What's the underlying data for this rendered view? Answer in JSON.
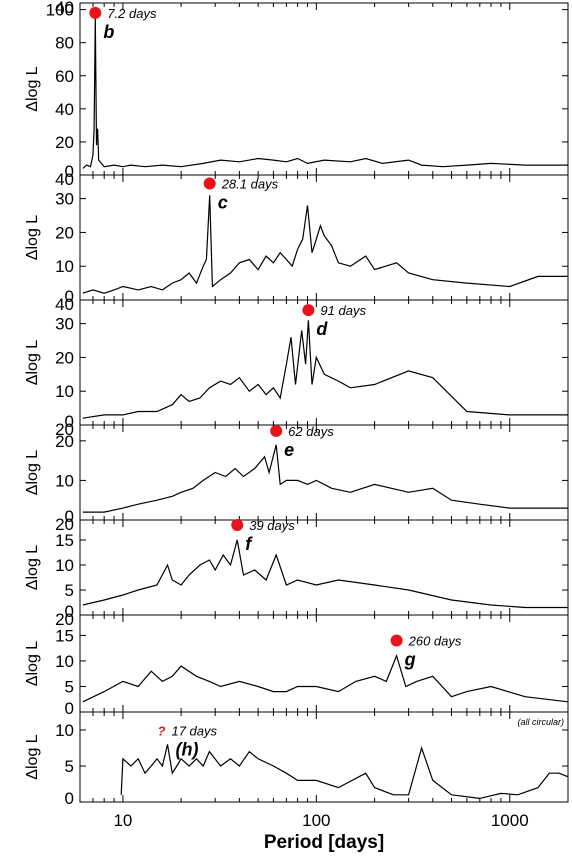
{
  "chart_data": {
    "type": "line",
    "xlabel": "Period [days]",
    "x_scale": "log",
    "xlim": [
      6,
      2000
    ],
    "x_ticks": [
      {
        "value": 10,
        "label": "10"
      },
      {
        "value": 100,
        "label": "100"
      },
      {
        "value": 1000,
        "label": "1000"
      }
    ],
    "note": "(all circular)",
    "panels": [
      {
        "ylabel": "Δlog L",
        "ylim": [
          0,
          104
        ],
        "yticks": [
          20,
          40,
          60,
          80,
          100
        ],
        "top_tick_label": "40",
        "marker": {
          "period": 7.2,
          "value": 98,
          "label": "7.2 days",
          "planet": "b"
        },
        "series": [
          [
            6.2,
            4
          ],
          [
            6.5,
            6
          ],
          [
            6.8,
            5
          ],
          [
            7.0,
            12
          ],
          [
            7.1,
            28
          ],
          [
            7.2,
            95
          ],
          [
            7.3,
            18
          ],
          [
            7.4,
            28
          ],
          [
            7.5,
            9
          ],
          [
            8,
            5
          ],
          [
            9,
            6
          ],
          [
            10,
            5
          ],
          [
            11,
            6
          ],
          [
            13,
            5
          ],
          [
            16,
            6
          ],
          [
            20,
            5
          ],
          [
            26,
            7
          ],
          [
            32,
            9
          ],
          [
            40,
            8
          ],
          [
            50,
            10
          ],
          [
            60,
            9
          ],
          [
            70,
            8
          ],
          [
            80,
            10
          ],
          [
            90,
            7
          ],
          [
            110,
            9
          ],
          [
            150,
            8
          ],
          [
            180,
            10
          ],
          [
            220,
            7
          ],
          [
            300,
            9
          ],
          [
            350,
            6
          ],
          [
            450,
            5
          ],
          [
            600,
            6
          ],
          [
            800,
            7
          ],
          [
            1200,
            6
          ],
          [
            2000,
            6
          ]
        ]
      },
      {
        "ylabel": "Δlog L",
        "ylim": [
          0,
          37
        ],
        "yticks": [
          10,
          20,
          30
        ],
        "top_tick_label": "40",
        "marker": {
          "period": 28.1,
          "value": 34.5,
          "label": "28.1 days",
          "planet": "c"
        },
        "series": [
          [
            6.2,
            2
          ],
          [
            7,
            3
          ],
          [
            8,
            2
          ],
          [
            9,
            3
          ],
          [
            10,
            4
          ],
          [
            12,
            3
          ],
          [
            14,
            4
          ],
          [
            16,
            3
          ],
          [
            18,
            5
          ],
          [
            20,
            6
          ],
          [
            22,
            8
          ],
          [
            24,
            5
          ],
          [
            26,
            10
          ],
          [
            27,
            12
          ],
          [
            28.1,
            31
          ],
          [
            29,
            4
          ],
          [
            32,
            6
          ],
          [
            36,
            8
          ],
          [
            40,
            11
          ],
          [
            45,
            12
          ],
          [
            50,
            9
          ],
          [
            55,
            13
          ],
          [
            60,
            11
          ],
          [
            65,
            14
          ],
          [
            70,
            12
          ],
          [
            75,
            10
          ],
          [
            80,
            15
          ],
          [
            85,
            18
          ],
          [
            90,
            28
          ],
          [
            95,
            14
          ],
          [
            100,
            18
          ],
          [
            105,
            22
          ],
          [
            110,
            19
          ],
          [
            120,
            16
          ],
          [
            130,
            11
          ],
          [
            150,
            10
          ],
          [
            180,
            13
          ],
          [
            200,
            9
          ],
          [
            260,
            11
          ],
          [
            300,
            8
          ],
          [
            400,
            6
          ],
          [
            600,
            5
          ],
          [
            1000,
            4
          ],
          [
            1400,
            7
          ],
          [
            2000,
            7
          ]
        ]
      },
      {
        "ylabel": "Δlog L",
        "ylim": [
          0,
          37
        ],
        "yticks": [
          10,
          20,
          30
        ],
        "top_tick_label": "40",
        "marker": {
          "period": 91,
          "value": 34,
          "label": "91 days",
          "planet": "d"
        },
        "series": [
          [
            6.2,
            2
          ],
          [
            8,
            3
          ],
          [
            10,
            3
          ],
          [
            12,
            4
          ],
          [
            15,
            4
          ],
          [
            18,
            6
          ],
          [
            20,
            9
          ],
          [
            22,
            7
          ],
          [
            25,
            8
          ],
          [
            28,
            11
          ],
          [
            32,
            13
          ],
          [
            36,
            12
          ],
          [
            40,
            14
          ],
          [
            45,
            10
          ],
          [
            50,
            12
          ],
          [
            55,
            9
          ],
          [
            60,
            11
          ],
          [
            65,
            8
          ],
          [
            70,
            18
          ],
          [
            74,
            26
          ],
          [
            78,
            12
          ],
          [
            84,
            28
          ],
          [
            88,
            18
          ],
          [
            91,
            31
          ],
          [
            95,
            12
          ],
          [
            100,
            20
          ],
          [
            110,
            15
          ],
          [
            130,
            13
          ],
          [
            150,
            11
          ],
          [
            200,
            12
          ],
          [
            300,
            16
          ],
          [
            400,
            14
          ],
          [
            600,
            4
          ],
          [
            1000,
            3
          ],
          [
            2000,
            3
          ]
        ]
      },
      {
        "ylabel": "Δlog L",
        "ylim": [
          0,
          24
        ],
        "yticks": [
          10,
          20
        ],
        "top_tick_label": "20",
        "marker": {
          "period": 62,
          "value": 22.5,
          "label": "62 days",
          "planet": "e"
        },
        "series": [
          [
            6.2,
            2
          ],
          [
            8,
            2
          ],
          [
            10,
            3
          ],
          [
            12,
            4
          ],
          [
            15,
            5
          ],
          [
            18,
            6
          ],
          [
            20,
            7
          ],
          [
            23,
            8
          ],
          [
            26,
            10
          ],
          [
            30,
            12
          ],
          [
            34,
            11
          ],
          [
            38,
            13
          ],
          [
            42,
            11
          ],
          [
            48,
            13
          ],
          [
            54,
            16
          ],
          [
            57,
            12
          ],
          [
            62,
            19
          ],
          [
            65,
            9
          ],
          [
            70,
            10
          ],
          [
            80,
            10
          ],
          [
            90,
            9
          ],
          [
            100,
            10
          ],
          [
            120,
            8
          ],
          [
            150,
            7
          ],
          [
            200,
            9
          ],
          [
            300,
            7
          ],
          [
            400,
            8
          ],
          [
            500,
            5
          ],
          [
            700,
            4
          ],
          [
            1000,
            3
          ],
          [
            2000,
            3
          ]
        ]
      },
      {
        "ylabel": "Δlog L",
        "ylim": [
          0,
          19
        ],
        "yticks": [
          5,
          10,
          15
        ],
        "top_tick_label": "20",
        "marker": {
          "period": 39,
          "value": 18,
          "label": "39 days",
          "planet": "f"
        },
        "series": [
          [
            6.2,
            2
          ],
          [
            8,
            3
          ],
          [
            10,
            4
          ],
          [
            12,
            5
          ],
          [
            15,
            6
          ],
          [
            17,
            10
          ],
          [
            18,
            7
          ],
          [
            20,
            6
          ],
          [
            22,
            8
          ],
          [
            25,
            10
          ],
          [
            28,
            11
          ],
          [
            30,
            9
          ],
          [
            33,
            12
          ],
          [
            36,
            10
          ],
          [
            39,
            15
          ],
          [
            42,
            8
          ],
          [
            48,
            9
          ],
          [
            55,
            7
          ],
          [
            62,
            12
          ],
          [
            70,
            6
          ],
          [
            80,
            7
          ],
          [
            100,
            6
          ],
          [
            130,
            7
          ],
          [
            200,
            6
          ],
          [
            300,
            5
          ],
          [
            500,
            3
          ],
          [
            800,
            2
          ],
          [
            1200,
            1.5
          ],
          [
            2000,
            1.5
          ]
        ]
      },
      {
        "ylabel": "Δlog L",
        "ylim": [
          0,
          19
        ],
        "yticks": [
          5,
          10,
          15
        ],
        "top_tick_label": "20",
        "marker": {
          "period": 260,
          "value": 14,
          "label": "260 days",
          "planet": "g"
        },
        "series": [
          [
            6.2,
            2
          ],
          [
            8,
            4
          ],
          [
            10,
            6
          ],
          [
            12,
            5
          ],
          [
            14,
            8
          ],
          [
            16,
            6
          ],
          [
            18,
            7
          ],
          [
            20,
            9
          ],
          [
            24,
            7
          ],
          [
            28,
            6
          ],
          [
            32,
            5
          ],
          [
            40,
            6
          ],
          [
            50,
            5
          ],
          [
            60,
            4
          ],
          [
            70,
            4
          ],
          [
            80,
            5
          ],
          [
            100,
            5
          ],
          [
            130,
            4
          ],
          [
            160,
            6
          ],
          [
            200,
            7
          ],
          [
            230,
            6
          ],
          [
            260,
            11
          ],
          [
            290,
            5
          ],
          [
            330,
            6
          ],
          [
            400,
            7
          ],
          [
            500,
            3
          ],
          [
            600,
            4
          ],
          [
            800,
            5
          ],
          [
            1200,
            3
          ],
          [
            2000,
            2
          ]
        ]
      },
      {
        "ylabel": "Δlog L",
        "ylim": [
          0,
          12.5
        ],
        "yticks": [
          5,
          10
        ],
        "top_tick_label": "",
        "marker": {
          "period": 17,
          "value": 9.8,
          "label": "17 days",
          "planet": "(h)",
          "uncertain": "?"
        },
        "series": [
          [
            9.8,
            1
          ],
          [
            10,
            6
          ],
          [
            11,
            5
          ],
          [
            12,
            6
          ],
          [
            13,
            4
          ],
          [
            14,
            5
          ],
          [
            15,
            6
          ],
          [
            16,
            5
          ],
          [
            17,
            8
          ],
          [
            18,
            4
          ],
          [
            19,
            5
          ],
          [
            20,
            6
          ],
          [
            22,
            5
          ],
          [
            24,
            6
          ],
          [
            26,
            5
          ],
          [
            28,
            7
          ],
          [
            32,
            5
          ],
          [
            36,
            6
          ],
          [
            40,
            5
          ],
          [
            45,
            7
          ],
          [
            50,
            6
          ],
          [
            60,
            5
          ],
          [
            70,
            4
          ],
          [
            80,
            3
          ],
          [
            100,
            3
          ],
          [
            130,
            2
          ],
          [
            180,
            4
          ],
          [
            200,
            2
          ],
          [
            250,
            1
          ],
          [
            300,
            1
          ],
          [
            350,
            7.5
          ],
          [
            400,
            3
          ],
          [
            500,
            1
          ],
          [
            700,
            0.5
          ],
          [
            900,
            1.2
          ],
          [
            1100,
            1
          ],
          [
            1400,
            2
          ],
          [
            1600,
            4
          ],
          [
            1800,
            4
          ],
          [
            2000,
            3.5
          ]
        ]
      }
    ]
  }
}
